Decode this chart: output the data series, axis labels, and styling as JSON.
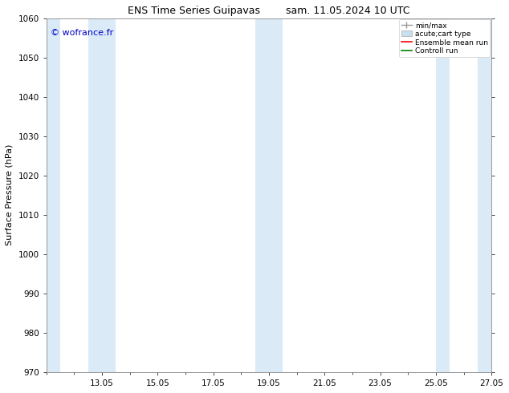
{
  "title_left": "ENS Time Series Guipavas",
  "title_right": "sam. 11.05.2024 10 UTC",
  "ylabel": "Surface Pressure (hPa)",
  "ylim": [
    970,
    1060
  ],
  "yticks": [
    970,
    980,
    990,
    1000,
    1010,
    1020,
    1030,
    1040,
    1050,
    1060
  ],
  "xtick_labels": [
    "13.05",
    "15.05",
    "17.05",
    "19.05",
    "21.05",
    "23.05",
    "25.05",
    "27.05"
  ],
  "xtick_positions": [
    2,
    4,
    6,
    8,
    10,
    12,
    14,
    16
  ],
  "xlim": [
    0,
    16
  ],
  "shaded_bands": [
    {
      "xmin": 0.0,
      "xmax": 0.5,
      "color": "#daeaf7"
    },
    {
      "xmin": 1.5,
      "xmax": 2.5,
      "color": "#daeaf7"
    },
    {
      "xmin": 7.5,
      "xmax": 8.5,
      "color": "#daeaf7"
    },
    {
      "xmin": 14.0,
      "xmax": 14.5,
      "color": "#daeaf7"
    },
    {
      "xmin": 15.5,
      "xmax": 16.0,
      "color": "#daeaf7"
    }
  ],
  "watermark": "© wofrance.fr",
  "watermark_color": "#0000cc",
  "legend_items": [
    {
      "label": "min/max",
      "color": "#aaaaaa",
      "type": "errorbar"
    },
    {
      "label": "acute;cart type",
      "color": "#c8dff0",
      "type": "bar"
    },
    {
      "label": "Ensemble mean run",
      "color": "#ff0000",
      "type": "line"
    },
    {
      "label": "Controll run",
      "color": "#008000",
      "type": "line"
    }
  ],
  "bg_color": "#ffffff",
  "title_fontsize": 9,
  "label_fontsize": 8,
  "tick_fontsize": 7.5,
  "legend_fontsize": 6.5
}
